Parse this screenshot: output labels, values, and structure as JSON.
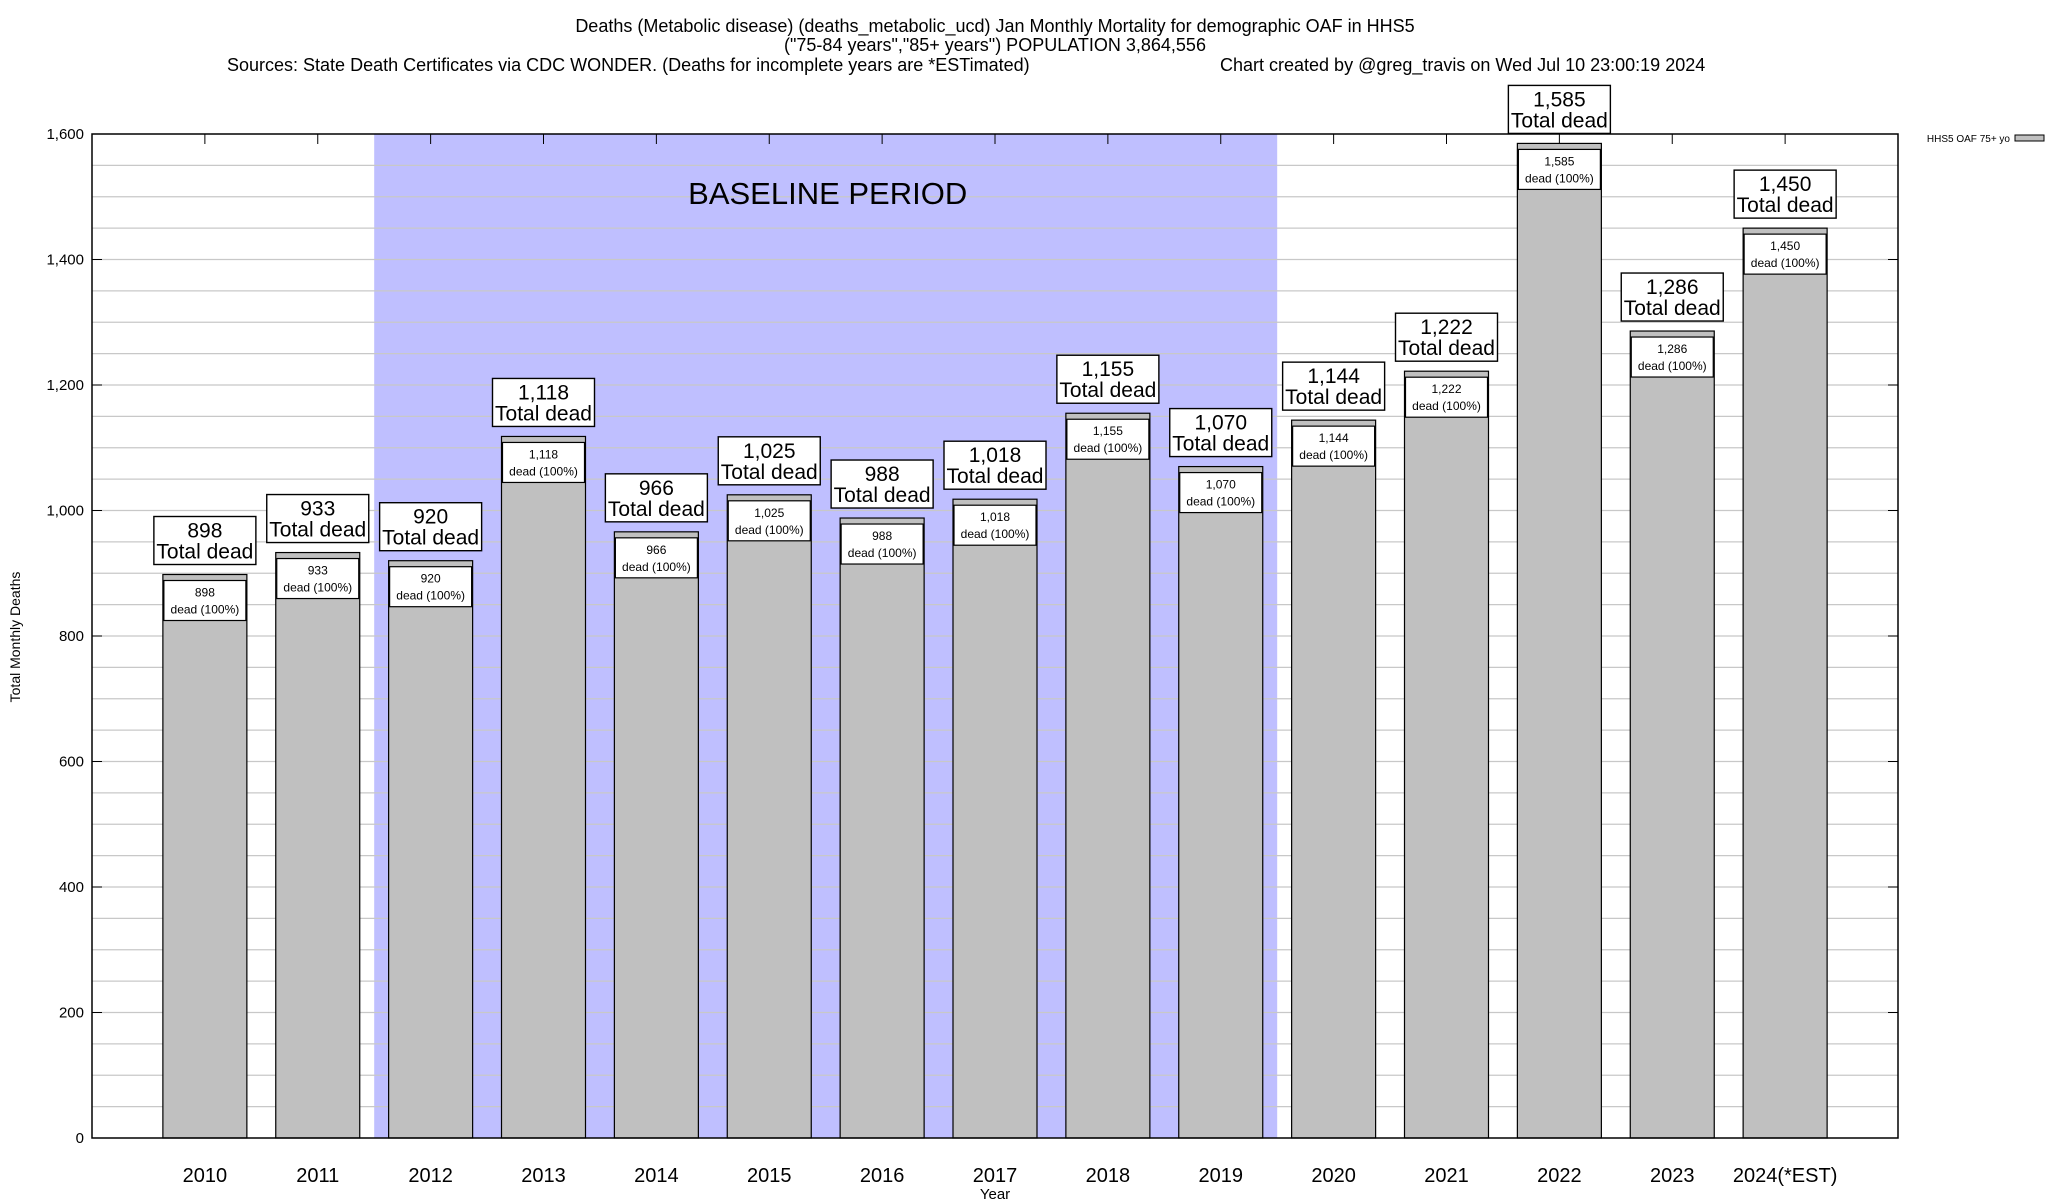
{
  "chart_data": {
    "type": "bar",
    "title_lines": [
      "Deaths (Metabolic disease) (deaths_metabolic_ucd) Jan Monthly Mortality for demographic OAF in HHS5",
      "(\"75-84 years\",\"85+ years\") POPULATION 3,864,556"
    ],
    "sources": "Sources: State Death Certificates via CDC WONDER. (Deaths for incomplete years are *ESTimated)",
    "credit": "Chart created by @greg_travis on Wed Jul 10 23:00:19 2024",
    "xlabel": "Year",
    "ylabel": "Total Monthly Deaths",
    "ylim": [
      0,
      1600
    ],
    "yticks": [
      0,
      200,
      400,
      600,
      800,
      1000,
      1200,
      1400,
      1600
    ],
    "ytick_labels": [
      "0",
      "200",
      "400",
      "600",
      "800",
      "1,000",
      "1,200",
      "1,400",
      "1,600"
    ],
    "grid_step": 50,
    "categories": [
      "2010",
      "2011",
      "2012",
      "2013",
      "2014",
      "2015",
      "2016",
      "2017",
      "2018",
      "2019",
      "2020",
      "2021",
      "2022",
      "2023",
      "2024(*EST)"
    ],
    "values": [
      898,
      933,
      920,
      1118,
      966,
      1025,
      988,
      1018,
      1155,
      1070,
      1144,
      1222,
      1585,
      1286,
      1450
    ],
    "value_labels": [
      "898",
      "933",
      "920",
      "1,118",
      "966",
      "1,025",
      "988",
      "1,018",
      "1,155",
      "1,070",
      "1,144",
      "1,222",
      "1,585",
      "1,286",
      "1,450"
    ],
    "top_label_suffix": "Total dead",
    "inner_label_suffix": "dead (100%)",
    "baseline": {
      "label": "BASELINE PERIOD",
      "from_category": "2012",
      "to_category": "2019"
    },
    "legend": {
      "label": "HHS5 OAF 75+ yo",
      "placement": "top-right"
    },
    "colors": {
      "bar": "#c0c0c0",
      "baseline": "#bfbfff",
      "grid": "#c8c8c8"
    }
  }
}
